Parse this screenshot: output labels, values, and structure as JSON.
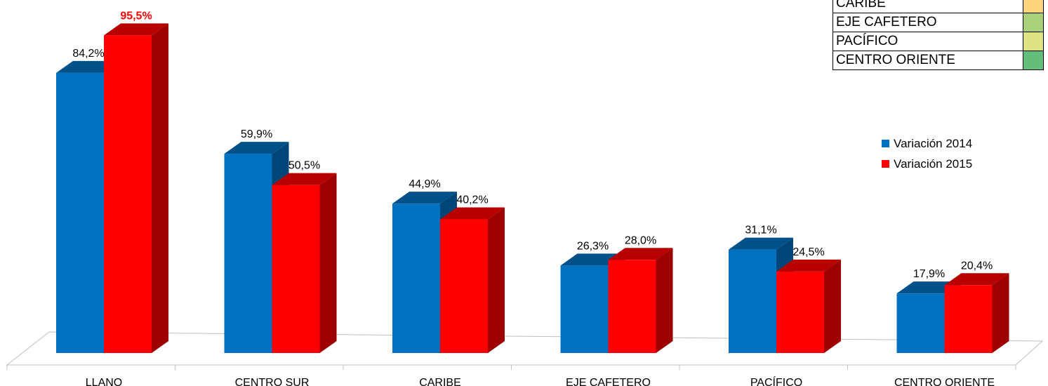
{
  "chart_data": {
    "type": "bar",
    "title": "",
    "xlabel": "",
    "ylabel": "",
    "categories": [
      "LLANO",
      "CENTRO SUR",
      "CARIBE",
      "EJE CAFETERO",
      "PACÍFICO",
      "CENTRO ORIENTE"
    ],
    "series": [
      {
        "name": "Variación 2014",
        "color": "#0070c0",
        "values": [
          84.2,
          59.9,
          44.9,
          26.3,
          31.1,
          17.9
        ],
        "labels": [
          "84,2%",
          "59,9%",
          "44,9%",
          "26,3%",
          "31,1%",
          "17,9%"
        ]
      },
      {
        "name": "Variación 2015",
        "color": "#ff0000",
        "values": [
          95.5,
          50.5,
          40.2,
          28.0,
          24.5,
          20.4
        ],
        "labels": [
          "95,5%",
          "50,5%",
          "40,2%",
          "28,0%",
          "24,5%",
          "20,4%"
        ]
      }
    ],
    "highlighted_label": "95,5%",
    "highlight_color": "#ff0000",
    "ylim": [
      0,
      100
    ],
    "grid": false,
    "legend_position": "right",
    "style": "3d-columns"
  },
  "inset_table": {
    "rows": [
      {
        "name": "CARIBE",
        "color": "#fdd37e"
      },
      {
        "name": "EJE CAFETERO",
        "color": "#a9d17a"
      },
      {
        "name": "PACÍFICO",
        "color": "#dee283"
      },
      {
        "name": "CENTRO ORIENTE",
        "color": "#63be7b"
      }
    ]
  }
}
